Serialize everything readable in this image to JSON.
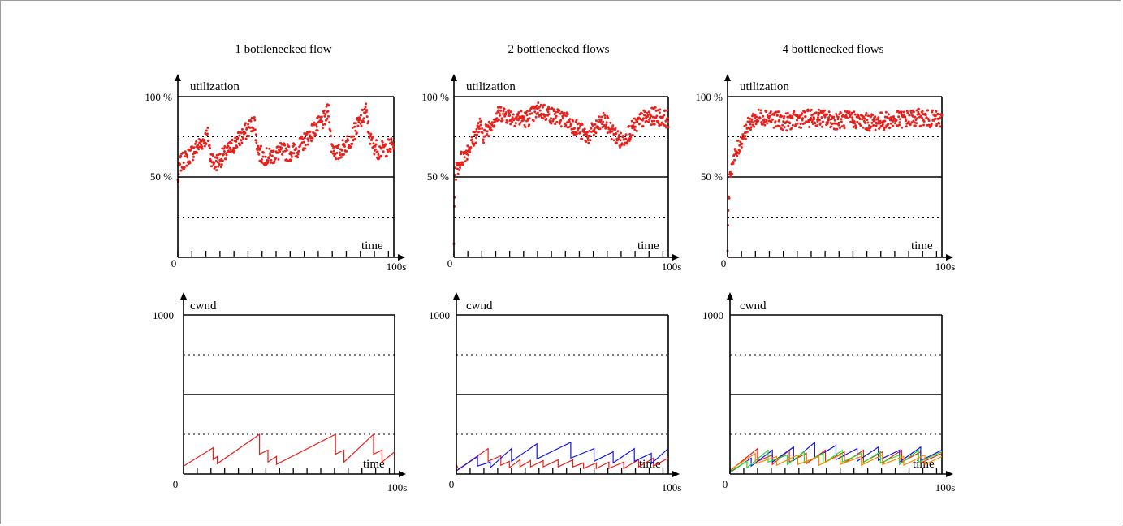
{
  "panel_titles": [
    "1 bottlenecked flow",
    "2 bottlenecked flows",
    "4 bottlenecked flows"
  ],
  "util_axis": {
    "ylabel": "utilization",
    "xlabel": "time",
    "y_top": "100 %",
    "y_mid": "50 %",
    "origin": "0",
    "x_end": "100s"
  },
  "cwnd_axis": {
    "ylabel": "cwnd",
    "xlabel": "time",
    "y_top": "1000",
    "origin": "0",
    "x_end": "100s"
  },
  "colors": {
    "red": "#e8201c",
    "blue": "#1414e6",
    "green": "#22dd22",
    "orange": "#ff8800",
    "axis": "#000000"
  },
  "chart_data": [
    {
      "type": "scatter",
      "title": "1 bottlenecked flow",
      "ylabel": "utilization",
      "xlabel": "time",
      "xlim": [
        0,
        100
      ],
      "ylim": [
        0,
        100
      ],
      "grid_dotted": [
        25,
        75
      ],
      "grid_solid": [
        50,
        100
      ],
      "x_ticks": [
        0,
        6.5,
        13,
        19.5,
        26,
        32.5,
        39,
        45.5,
        52,
        58.5,
        65,
        71.5,
        78,
        84.5,
        91,
        97.5
      ],
      "series": [
        {
          "color": "#e8201c",
          "anchors": [
            [
              0,
              47
            ],
            [
              1,
              58
            ],
            [
              5,
              63
            ],
            [
              10,
              70
            ],
            [
              14,
              76
            ],
            [
              15,
              64
            ],
            [
              17,
              58
            ],
            [
              22,
              64
            ],
            [
              30,
              76
            ],
            [
              36,
              85
            ],
            [
              35,
              91
            ],
            [
              36,
              74
            ],
            [
              38,
              64
            ],
            [
              42,
              62
            ],
            [
              48,
              66
            ],
            [
              52,
              65
            ],
            [
              56,
              68
            ],
            [
              62,
              78
            ],
            [
              68,
              86
            ],
            [
              70,
              92
            ],
            [
              71,
              70
            ],
            [
              74,
              64
            ],
            [
              80,
              74
            ],
            [
              86,
              88
            ],
            [
              87,
              92
            ],
            [
              89,
              73
            ],
            [
              93,
              66
            ],
            [
              100,
              70
            ]
          ]
        }
      ]
    },
    {
      "type": "scatter",
      "title": "2 bottlenecked flows",
      "ylabel": "utilization",
      "xlabel": "time",
      "xlim": [
        0,
        100
      ],
      "ylim": [
        0,
        100
      ],
      "grid_dotted": [
        25,
        75
      ],
      "grid_solid": [
        50,
        100
      ],
      "x_ticks": [
        0,
        6.5,
        13,
        19.5,
        26,
        32.5,
        39,
        45.5,
        52,
        58.5,
        65,
        71.5,
        78,
        84.5,
        91,
        97.5
      ],
      "series": [
        {
          "color": "#e8201c",
          "anchors": [
            [
              0,
              10
            ],
            [
              0.5,
              52
            ],
            [
              3,
              60
            ],
            [
              8,
              70
            ],
            [
              12,
              82
            ],
            [
              14,
              76
            ],
            [
              18,
              85
            ],
            [
              22,
              90
            ],
            [
              28,
              87
            ],
            [
              34,
              86
            ],
            [
              40,
              92
            ],
            [
              46,
              88
            ],
            [
              52,
              86
            ],
            [
              58,
              80
            ],
            [
              62,
              75
            ],
            [
              66,
              80
            ],
            [
              70,
              85
            ],
            [
              74,
              78
            ],
            [
              78,
              72
            ],
            [
              82,
              78
            ],
            [
              88,
              86
            ],
            [
              94,
              88
            ],
            [
              100,
              86
            ]
          ]
        }
      ]
    },
    {
      "type": "scatter",
      "title": "4 bottlenecked flows",
      "ylabel": "utilization",
      "xlabel": "time",
      "xlim": [
        0,
        100
      ],
      "ylim": [
        0,
        100
      ],
      "grid_dotted": [
        25,
        75
      ],
      "grid_solid": [
        50,
        100
      ],
      "x_ticks": [
        0,
        6.5,
        13,
        19.5,
        26,
        32.5,
        39,
        45.5,
        52,
        58.5,
        65,
        71.5,
        78,
        84.5,
        91,
        97.5
      ],
      "series": [
        {
          "color": "#e8201c",
          "anchors": [
            [
              0,
              5
            ],
            [
              0.5,
              30
            ],
            [
              1,
              52
            ],
            [
              4,
              65
            ],
            [
              8,
              78
            ],
            [
              12,
              86
            ],
            [
              18,
              88
            ],
            [
              26,
              84
            ],
            [
              34,
              86
            ],
            [
              42,
              87
            ],
            [
              50,
              85
            ],
            [
              58,
              86
            ],
            [
              66,
              84
            ],
            [
              74,
              85
            ],
            [
              82,
              86
            ],
            [
              90,
              87
            ],
            [
              100,
              85
            ]
          ]
        }
      ]
    },
    {
      "type": "line",
      "title": "1 bottlenecked flow",
      "ylabel": "cwnd",
      "xlabel": "time",
      "xlim": [
        0,
        100
      ],
      "ylim": [
        0,
        1000
      ],
      "grid_dotted": [
        250,
        750
      ],
      "grid_solid": [
        500,
        1000
      ],
      "x_ticks": [
        0,
        6.5,
        13,
        19.5,
        26,
        32.5,
        39,
        45.5,
        52,
        58.5,
        65,
        71.5,
        78,
        84.5,
        91,
        97.5
      ],
      "series": [
        {
          "color": "#e8201c",
          "points": [
            [
              0,
              50
            ],
            [
              14,
              165
            ],
            [
              14,
              90
            ],
            [
              16,
              110
            ],
            [
              16,
              65
            ],
            [
              36,
              250
            ],
            [
              36,
              125
            ],
            [
              40,
              150
            ],
            [
              40,
              75
            ],
            [
              44,
              110
            ],
            [
              44,
              60
            ],
            [
              72,
              250
            ],
            [
              72,
              125
            ],
            [
              76,
              150
            ],
            [
              76,
              75
            ],
            [
              90,
              250
            ],
            [
              90,
              125
            ],
            [
              94,
              150
            ],
            [
              94,
              75
            ],
            [
              100,
              140
            ]
          ]
        }
      ]
    },
    {
      "type": "line",
      "title": "2 bottlenecked flows",
      "ylabel": "cwnd",
      "xlabel": "time",
      "xlim": [
        0,
        100
      ],
      "ylim": [
        0,
        1000
      ],
      "grid_dotted": [
        250,
        750
      ],
      "grid_solid": [
        500,
        1000
      ],
      "x_ticks": [
        0,
        6.5,
        13,
        19.5,
        26,
        32.5,
        39,
        45.5,
        52,
        58.5,
        65,
        71.5,
        78,
        84.5,
        91,
        97.5
      ],
      "series": [
        {
          "color": "#e8201c",
          "points": [
            [
              0,
              60
            ],
            [
              1,
              30
            ],
            [
              15,
              160
            ],
            [
              15,
              80
            ],
            [
              21,
              115
            ],
            [
              21,
              55
            ],
            [
              25,
              80
            ],
            [
              25,
              40
            ],
            [
              30,
              90
            ],
            [
              30,
              45
            ],
            [
              35,
              85
            ],
            [
              35,
              45
            ],
            [
              41,
              85
            ],
            [
              41,
              45
            ],
            [
              48,
              90
            ],
            [
              48,
              45
            ],
            [
              55,
              90
            ],
            [
              55,
              45
            ],
            [
              60,
              70
            ],
            [
              60,
              35
            ],
            [
              66,
              70
            ],
            [
              66,
              35
            ],
            [
              72,
              75
            ],
            [
              72,
              35
            ],
            [
              79,
              75
            ],
            [
              79,
              35
            ],
            [
              86,
              90
            ],
            [
              86,
              45
            ],
            [
              93,
              100
            ],
            [
              93,
              50
            ],
            [
              100,
              100
            ]
          ]
        },
        {
          "color": "#1414e6",
          "points": [
            [
              0,
              20
            ],
            [
              10,
              110
            ],
            [
              10,
              50
            ],
            [
              16,
              75
            ],
            [
              16,
              40
            ],
            [
              26,
              160
            ],
            [
              26,
              80
            ],
            [
              38,
              190
            ],
            [
              38,
              95
            ],
            [
              54,
              200
            ],
            [
              54,
              100
            ],
            [
              65,
              160
            ],
            [
              65,
              80
            ],
            [
              74,
              140
            ],
            [
              74,
              70
            ],
            [
              84,
              160
            ],
            [
              84,
              80
            ],
            [
              92,
              130
            ],
            [
              92,
              65
            ],
            [
              100,
              160
            ]
          ]
        }
      ]
    },
    {
      "type": "line",
      "title": "4 bottlenecked flows",
      "ylabel": "cwnd",
      "xlabel": "time",
      "xlim": [
        0,
        100
      ],
      "ylim": [
        0,
        1000
      ],
      "grid_dotted": [
        250,
        750
      ],
      "grid_solid": [
        500,
        1000
      ],
      "x_ticks": [
        0,
        6.5,
        13,
        19.5,
        26,
        32.5,
        39,
        45.5,
        52,
        58.5,
        65,
        71.5,
        78,
        84.5,
        91,
        97.5
      ],
      "series": [
        {
          "color": "#e8201c",
          "points": [
            [
              0,
              20
            ],
            [
              13,
              160
            ],
            [
              13,
              80
            ],
            [
              20,
              120
            ],
            [
              20,
              60
            ],
            [
              28,
              150
            ],
            [
              28,
              75
            ],
            [
              36,
              130
            ],
            [
              36,
              65
            ],
            [
              45,
              150
            ],
            [
              45,
              75
            ],
            [
              54,
              140
            ],
            [
              54,
              70
            ],
            [
              63,
              150
            ],
            [
              63,
              75
            ],
            [
              72,
              140
            ],
            [
              72,
              70
            ],
            [
              81,
              150
            ],
            [
              81,
              75
            ],
            [
              90,
              140
            ],
            [
              90,
              70
            ],
            [
              100,
              130
            ]
          ]
        },
        {
          "color": "#1414e6",
          "points": [
            [
              0,
              10
            ],
            [
              10,
              100
            ],
            [
              10,
              50
            ],
            [
              20,
              150
            ],
            [
              20,
              75
            ],
            [
              30,
              170
            ],
            [
              30,
              85
            ],
            [
              40,
              200
            ],
            [
              40,
              100
            ],
            [
              50,
              180
            ],
            [
              50,
              90
            ],
            [
              60,
              160
            ],
            [
              60,
              80
            ],
            [
              70,
              170
            ],
            [
              70,
              85
            ],
            [
              80,
              150
            ],
            [
              80,
              75
            ],
            [
              90,
              170
            ],
            [
              90,
              85
            ],
            [
              100,
              150
            ]
          ]
        },
        {
          "color": "#22dd22",
          "points": [
            [
              0,
              15
            ],
            [
              8,
              80
            ],
            [
              8,
              40
            ],
            [
              18,
              150
            ],
            [
              18,
              75
            ],
            [
              27,
              120
            ],
            [
              27,
              60
            ],
            [
              35,
              140
            ],
            [
              35,
              70
            ],
            [
              44,
              130
            ],
            [
              44,
              65
            ],
            [
              53,
              150
            ],
            [
              53,
              75
            ],
            [
              62,
              130
            ],
            [
              62,
              65
            ],
            [
              71,
              140
            ],
            [
              71,
              70
            ],
            [
              80,
              120
            ],
            [
              80,
              60
            ],
            [
              89,
              150
            ],
            [
              89,
              75
            ],
            [
              100,
              140
            ]
          ]
        },
        {
          "color": "#ff8800",
          "points": [
            [
              0,
              25
            ],
            [
              12,
              130
            ],
            [
              12,
              65
            ],
            [
              22,
              110
            ],
            [
              22,
              55
            ],
            [
              32,
              120
            ],
            [
              32,
              60
            ],
            [
              42,
              110
            ],
            [
              42,
              55
            ],
            [
              52,
              120
            ],
            [
              52,
              60
            ],
            [
              62,
              110
            ],
            [
              62,
              55
            ],
            [
              72,
              120
            ],
            [
              72,
              60
            ],
            [
              82,
              110
            ],
            [
              82,
              55
            ],
            [
              92,
              120
            ],
            [
              92,
              60
            ],
            [
              100,
              110
            ]
          ]
        }
      ]
    }
  ]
}
